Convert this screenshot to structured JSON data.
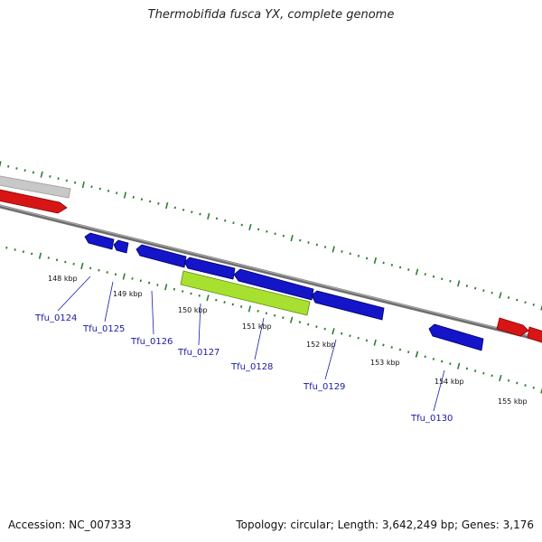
{
  "title": "Thermobifida fusca YX, complete genome",
  "accession": "Accession: NC_007333",
  "summary": "Topology: circular; Length: 3,642,249 bp; Genes: 3,176",
  "colors": {
    "background": "#ffffff",
    "backbone": "#7a7a7a",
    "tick": "#2f7d2f",
    "gene_forward": "#d81515",
    "gene_reverse": "#1414c8",
    "gene_highlight": "#a8e030",
    "gene_other": "#c8c8c8",
    "label": "#1a1aa6"
  },
  "scale_labels": [
    "148 kbp",
    "149 kbp",
    "150 kbp",
    "151 kbp",
    "152 kbp",
    "153 kbp",
    "154 kbp",
    "155 kbp"
  ],
  "genes": [
    {
      "label": "Tfu_0124",
      "color": "gene_reverse"
    },
    {
      "label": "Tfu_0125",
      "color": "gene_reverse"
    },
    {
      "label": "Tfu_0126",
      "color": "gene_reverse"
    },
    {
      "label": "Tfu_0127",
      "color": "gene_highlight"
    },
    {
      "label": "Tfu_0128",
      "color": "gene_reverse"
    },
    {
      "label": "Tfu_0129",
      "color": "gene_reverse"
    },
    {
      "label": "Tfu_0130",
      "color": "gene_reverse"
    }
  ]
}
